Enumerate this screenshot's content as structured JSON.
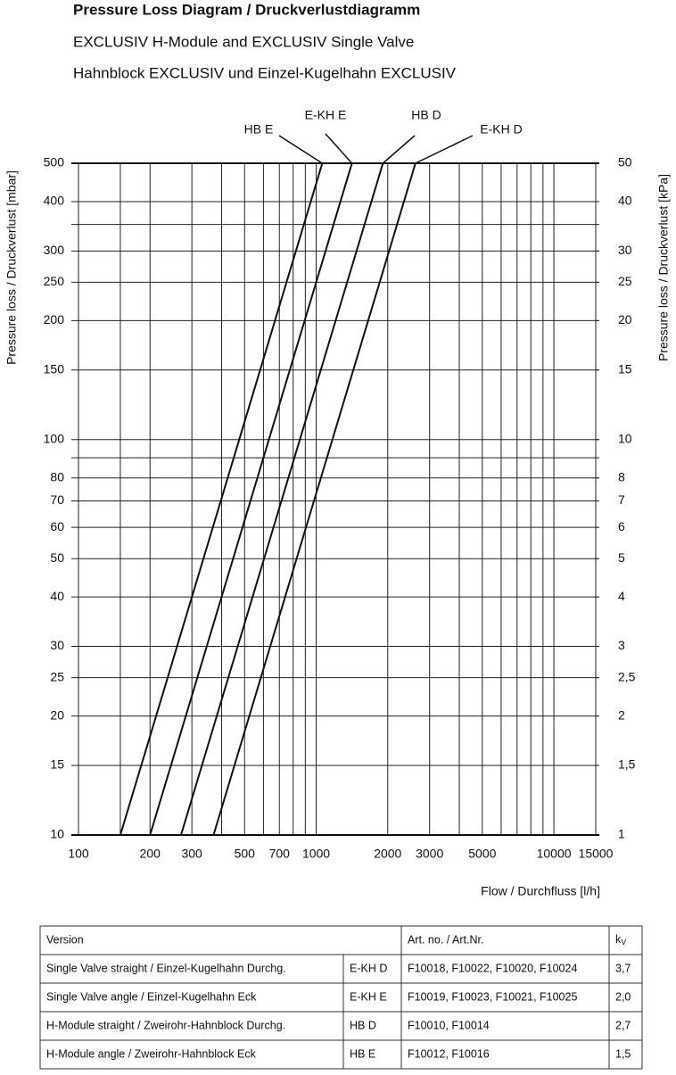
{
  "chart_data": {
    "type": "line",
    "title": "Pressure Loss Diagram / Druckverlustdiagramm",
    "subtitle": [
      "EXCLUSIV H-Module and EXCLUSIV Single Valve",
      "Hahnblock EXCLUSIV und Einzel-Kugelhahn EXCLUSIV"
    ],
    "xlabel": "Flow / Durchfluss [l/h]",
    "ylabel": "Pressure loss / Druckverlust [mbar]",
    "y2label": "Pressure loss / Druckverlust [kPa]",
    "xscale": "log",
    "yscale": "log",
    "grid": true,
    "color": "#111111",
    "xlim": [
      100,
      15000
    ],
    "xticks": [
      100,
      200,
      300,
      500,
      700,
      1000,
      2000,
      3000,
      5000,
      10000,
      15000
    ],
    "xgrid": [
      150,
      400,
      600,
      800,
      900,
      4000,
      6000,
      7000,
      8000,
      9000
    ],
    "ylim": [
      10,
      500
    ],
    "yticks": [
      500,
      400,
      300,
      250,
      200,
      150,
      100,
      80,
      70,
      60,
      50,
      40,
      30,
      25,
      20,
      15,
      10
    ],
    "ygrid": [
      90,
      350
    ],
    "y2lim": [
      1,
      50
    ],
    "y2ticks": [
      50,
      40,
      30,
      25,
      20,
      15,
      10,
      8,
      7,
      6,
      5,
      4,
      3,
      {
        "value": 2.5,
        "label": "2,5"
      },
      2,
      {
        "value": 1.5,
        "label": "1,5"
      },
      1
    ],
    "series": [
      {
        "name": "HB E",
        "x": [
          150,
          1061
        ],
        "values": [
          10,
          500
        ]
      },
      {
        "name": "E-KH E",
        "x": [
          200,
          1414
        ],
        "values": [
          10,
          500
        ]
      },
      {
        "name": "HB D",
        "x": [
          270,
          1909
        ],
        "values": [
          10,
          500
        ]
      },
      {
        "name": "E-KH D",
        "x": [
          370,
          2616
        ],
        "values": [
          10,
          500
        ]
      }
    ]
  },
  "table": {
    "header": {
      "version": "Version",
      "art_no": "Art. no. / Art.Nr.",
      "kv": "k",
      "kv_sub": "V"
    },
    "rows": [
      [
        "Single Valve straight / Einzel-Kugelhahn Durchg.",
        "E-KH D",
        "F10018, F10022, F10020, F10024",
        "3,7"
      ],
      [
        "Single Valve angle / Einzel-Kugelhahn Eck",
        "E-KH E",
        "F10019, F10023, F10021, F10025",
        "2,0"
      ],
      [
        "H-Module straight / Zweirohr-Hahnblock Durchg.",
        "HB D",
        "F10010, F10014",
        "2,7"
      ],
      [
        "H-Module angle / Zweirohr-Hahnblock Eck",
        "HB E",
        "F10012, F10016",
        "1,5"
      ]
    ]
  }
}
